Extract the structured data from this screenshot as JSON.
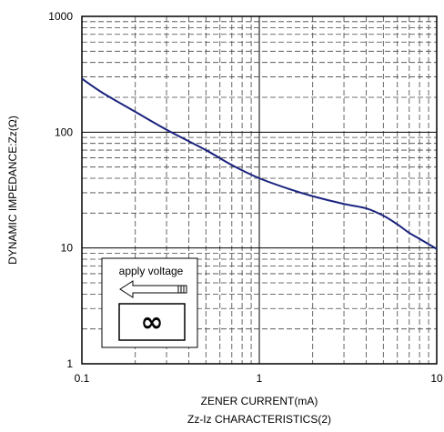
{
  "chart_data": {
    "type": "line",
    "title": "",
    "caption": "Zz-Iz CHARACTERISTICS(2)",
    "xlabel": "ZENER CURRENT(mA)",
    "ylabel": "DYNAMIC IMPEDANCE:Zz(Ω)",
    "x_scale": "log",
    "y_scale": "log",
    "xlim": [
      0.1,
      10
    ],
    "ylim": [
      1,
      1000
    ],
    "grid": true,
    "x_ticks": [
      "0.1",
      "1",
      "10"
    ],
    "y_ticks": [
      "1",
      "10",
      "100",
      "1000"
    ],
    "series": [
      {
        "name": "",
        "color": "#1a237e",
        "x": [
          0.1,
          0.13,
          0.2,
          0.3,
          0.5,
          0.7,
          1.0,
          1.5,
          2.0,
          3.0,
          4.0,
          5.0,
          6.0,
          7.0,
          8.0,
          10.0
        ],
        "y": [
          290,
          220,
          150,
          105,
          70,
          52,
          40,
          32,
          28,
          24,
          22,
          19,
          16,
          13.5,
          12,
          9.8
        ]
      }
    ],
    "inset": {
      "label": "apply voltage",
      "symbol": "∞",
      "arrow_icon": "probe-arrow-left-icon"
    }
  }
}
